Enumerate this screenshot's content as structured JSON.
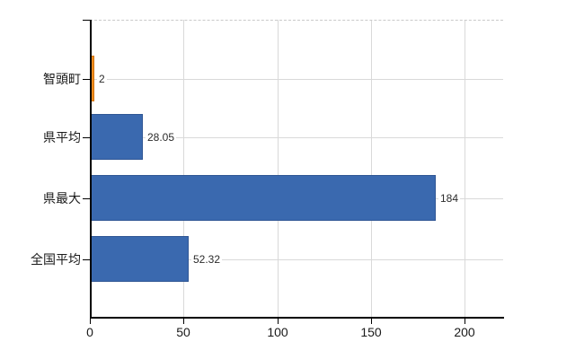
{
  "chart_data": {
    "type": "bar",
    "orientation": "horizontal",
    "title": "",
    "xlabel": "",
    "ylabel": "",
    "categories": [
      "智頭町",
      "県平均",
      "県最大",
      "全国平均"
    ],
    "values": [
      2,
      28.05,
      184,
      52.32
    ],
    "value_labels": [
      "2",
      "28.05",
      "184",
      "52.32"
    ],
    "series_colors": [
      "#EF8D20",
      "#3A69AF",
      "#3A69AF",
      "#3A69AF"
    ],
    "series_border_colors": [
      "#D2720E",
      "#2F5694",
      "#2F5694",
      "#2F5694"
    ],
    "x_ticks": [
      0,
      50,
      100,
      150,
      200
    ],
    "x_tick_labels": [
      "0",
      "50",
      "100",
      "150",
      "200"
    ],
    "xlim": [
      0,
      220
    ],
    "grid": true,
    "legend": false
  },
  "colors": {
    "background": "#FFFFFF",
    "axis": "#000000",
    "gridline": "#D9D9D9",
    "plot_top_border": "#C9C9C9",
    "label_text": "#1A1A1A",
    "value_text": "#2B2B2B"
  }
}
